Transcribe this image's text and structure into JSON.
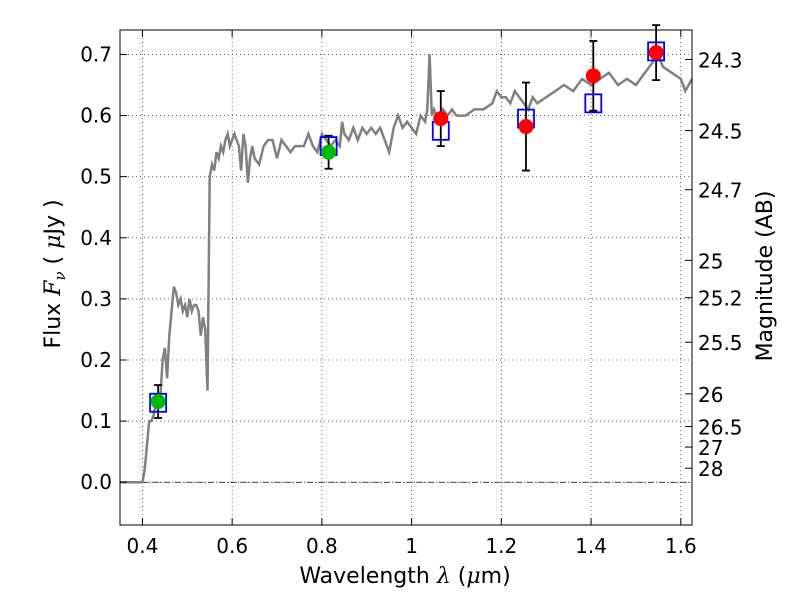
{
  "chart_data": {
    "type": "scatter",
    "xlabel_prefix": "Wavelength  ",
    "xlabel_symbol": "λ",
    "xlabel_unit": " (",
    "xlabel_mu": "μ",
    "xlabel_tail": "m)",
    "ylabel_prefix": "Flux  ",
    "ylabel_symbol": "F",
    "ylabel_sub": "ν",
    "ylabel_unit": "  ( ",
    "ylabel_mu": "μ",
    "ylabel_tail": "Jy )",
    "y2label": "Magnitude (AB)",
    "xlim": [
      0.35,
      1.625
    ],
    "ylim": [
      -0.07,
      0.74
    ],
    "xticks": [
      {
        "v": 0.4,
        "label": "0.4"
      },
      {
        "v": 0.6,
        "label": "0.6"
      },
      {
        "v": 0.8,
        "label": "0.8"
      },
      {
        "v": 1.0,
        "label": "1"
      },
      {
        "v": 1.2,
        "label": "1.2"
      },
      {
        "v": 1.4,
        "label": "1.4"
      },
      {
        "v": 1.6,
        "label": "1.6"
      }
    ],
    "yticks": [
      {
        "v": 0.0,
        "label": "0.0"
      },
      {
        "v": 0.1,
        "label": "0.1"
      },
      {
        "v": 0.2,
        "label": "0.2"
      },
      {
        "v": 0.3,
        "label": "0.3"
      },
      {
        "v": 0.4,
        "label": "0.4"
      },
      {
        "v": 0.5,
        "label": "0.5"
      },
      {
        "v": 0.6,
        "label": "0.6"
      },
      {
        "v": 0.7,
        "label": "0.7"
      }
    ],
    "mag_ticks": [
      {
        "v": 24.3,
        "label": "24.3"
      },
      {
        "v": 24.5,
        "label": "24.5"
      },
      {
        "v": 24.7,
        "label": "24.7"
      },
      {
        "v": 25.0,
        "label": "25"
      },
      {
        "v": 25.2,
        "label": "25.2"
      },
      {
        "v": 25.5,
        "label": "25.5"
      },
      {
        "v": 26.0,
        "label": "26"
      },
      {
        "v": 26.5,
        "label": "26.5"
      },
      {
        "v": 27.0,
        "label": "27"
      },
      {
        "v": 28.0,
        "label": "28"
      }
    ],
    "grid": true,
    "colors": {
      "model": "#808080",
      "square": "#0000ff",
      "green": "#00bb00",
      "red": "#ff0000",
      "errorbar": "#000000"
    },
    "model_spectrum": {
      "x": [
        0.35,
        0.4,
        0.405,
        0.41,
        0.415,
        0.42,
        0.425,
        0.43,
        0.435,
        0.44,
        0.445,
        0.45,
        0.455,
        0.46,
        0.465,
        0.47,
        0.475,
        0.48,
        0.485,
        0.49,
        0.495,
        0.5,
        0.505,
        0.51,
        0.515,
        0.52,
        0.525,
        0.53,
        0.535,
        0.54,
        0.545,
        0.55,
        0.555,
        0.56,
        0.565,
        0.57,
        0.575,
        0.58,
        0.585,
        0.59,
        0.595,
        0.6,
        0.605,
        0.61,
        0.615,
        0.62,
        0.625,
        0.63,
        0.635,
        0.64,
        0.645,
        0.65,
        0.66,
        0.67,
        0.68,
        0.69,
        0.7,
        0.71,
        0.72,
        0.73,
        0.74,
        0.75,
        0.76,
        0.77,
        0.78,
        0.79,
        0.8,
        0.81,
        0.82,
        0.83,
        0.84,
        0.845,
        0.85,
        0.86,
        0.87,
        0.88,
        0.89,
        0.9,
        0.91,
        0.92,
        0.93,
        0.94,
        0.95,
        0.96,
        0.97,
        0.98,
        0.99,
        1.0,
        1.01,
        1.02,
        1.03,
        1.035,
        1.04,
        1.045,
        1.05,
        1.06,
        1.07,
        1.08,
        1.09,
        1.1,
        1.12,
        1.14,
        1.16,
        1.18,
        1.19,
        1.2,
        1.21,
        1.22,
        1.23,
        1.24,
        1.25,
        1.26,
        1.27,
        1.28,
        1.3,
        1.32,
        1.34,
        1.36,
        1.38,
        1.4,
        1.42,
        1.44,
        1.46,
        1.48,
        1.5,
        1.52,
        1.54,
        1.55,
        1.56,
        1.58,
        1.6,
        1.61,
        1.625
      ],
      "y": [
        0.0,
        0.0,
        0.02,
        0.06,
        0.1,
        0.1,
        0.11,
        0.13,
        0.12,
        0.14,
        0.2,
        0.22,
        0.17,
        0.24,
        0.28,
        0.32,
        0.31,
        0.29,
        0.3,
        0.28,
        0.29,
        0.27,
        0.3,
        0.28,
        0.29,
        0.29,
        0.28,
        0.24,
        0.27,
        0.25,
        0.15,
        0.5,
        0.52,
        0.51,
        0.54,
        0.53,
        0.55,
        0.54,
        0.56,
        0.57,
        0.55,
        0.56,
        0.57,
        0.56,
        0.55,
        0.51,
        0.57,
        0.55,
        0.49,
        0.53,
        0.55,
        0.53,
        0.52,
        0.55,
        0.56,
        0.56,
        0.53,
        0.56,
        0.55,
        0.54,
        0.55,
        0.55,
        0.55,
        0.57,
        0.55,
        0.54,
        0.57,
        0.56,
        0.55,
        0.56,
        0.55,
        0.59,
        0.57,
        0.56,
        0.58,
        0.56,
        0.58,
        0.57,
        0.58,
        0.57,
        0.58,
        0.56,
        0.54,
        0.58,
        0.6,
        0.58,
        0.59,
        0.58,
        0.57,
        0.6,
        0.59,
        0.61,
        0.7,
        0.6,
        0.61,
        0.59,
        0.61,
        0.6,
        0.61,
        0.6,
        0.6,
        0.61,
        0.61,
        0.62,
        0.64,
        0.63,
        0.63,
        0.62,
        0.64,
        0.63,
        0.62,
        0.61,
        0.63,
        0.62,
        0.63,
        0.64,
        0.65,
        0.64,
        0.66,
        0.65,
        0.66,
        0.67,
        0.65,
        0.66,
        0.65,
        0.67,
        0.69,
        0.7,
        0.68,
        0.67,
        0.66,
        0.64,
        0.66
      ]
    },
    "synthetic_squares": {
      "x": [
        0.435,
        0.815,
        1.065,
        1.255,
        1.405,
        1.545
      ],
      "y": [
        0.13,
        0.55,
        0.575,
        0.595,
        0.62,
        0.705
      ]
    },
    "green_points": {
      "x": [
        0.435,
        0.815
      ],
      "y": [
        0.132,
        0.54
      ],
      "yerr": [
        0.027,
        0.027
      ]
    },
    "red_points": {
      "x": [
        1.065,
        1.255,
        1.405,
        1.545
      ],
      "y": [
        0.595,
        0.582,
        0.665,
        0.703
      ],
      "yerr": [
        0.045,
        0.072,
        0.057,
        0.045
      ]
    }
  }
}
